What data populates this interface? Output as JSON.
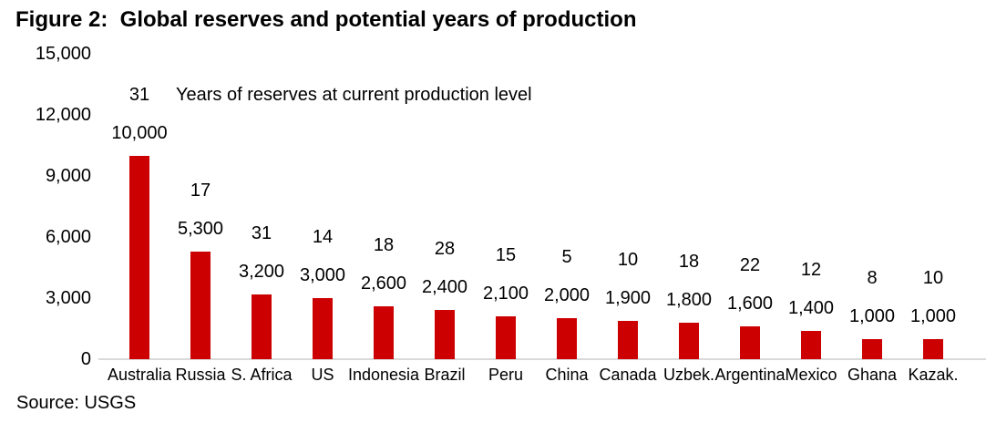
{
  "figure": {
    "title": "Figure 2:  Global reserves and potential years of production",
    "annotation": "Years of reserves at current production level",
    "source": "Source: USGS"
  },
  "colors": {
    "bar": "#cc0000",
    "axis_line": "#d9d9d9",
    "text": "#000000"
  },
  "chart_data": {
    "type": "bar",
    "title": "Figure 2:  Global reserves and potential years of production",
    "xlabel": "",
    "ylabel": "",
    "grid": false,
    "legend": "none",
    "ylim": [
      0,
      15000
    ],
    "yticks": [
      0,
      3000,
      6000,
      9000,
      12000,
      15000
    ],
    "ytick_labels": [
      "0",
      "3,000",
      "6,000",
      "9,000",
      "12,000",
      "15,000"
    ],
    "categories": [
      "Australia",
      "Russia",
      "S. Africa",
      "US",
      "Indonesia",
      "Brazil",
      "Peru",
      "China",
      "Canada",
      "Uzbek.",
      "Argentina",
      "Mexico",
      "Ghana",
      "Kazak."
    ],
    "series": [
      {
        "name": "Global reserves",
        "values": [
          10000,
          5300,
          3200,
          3000,
          2600,
          2400,
          2100,
          2000,
          1900,
          1800,
          1600,
          1400,
          1000,
          1000
        ],
        "value_labels": [
          "10,000",
          "5,300",
          "3,200",
          "3,000",
          "2,600",
          "2,400",
          "2,100",
          "2,000",
          "1,900",
          "1,800",
          "1,600",
          "1,400",
          "1,000",
          "1,000"
        ]
      },
      {
        "name": "Years of reserves at current production level",
        "values": [
          31,
          17,
          31,
          14,
          18,
          28,
          15,
          5,
          10,
          18,
          22,
          12,
          8,
          10
        ],
        "value_labels": [
          "31",
          "17",
          "31",
          "14",
          "18",
          "28",
          "15",
          "5",
          "10",
          "18",
          "22",
          "12",
          "8",
          "10"
        ]
      }
    ],
    "annotation": "Years of reserves at current production level",
    "source": "Source: USGS"
  }
}
